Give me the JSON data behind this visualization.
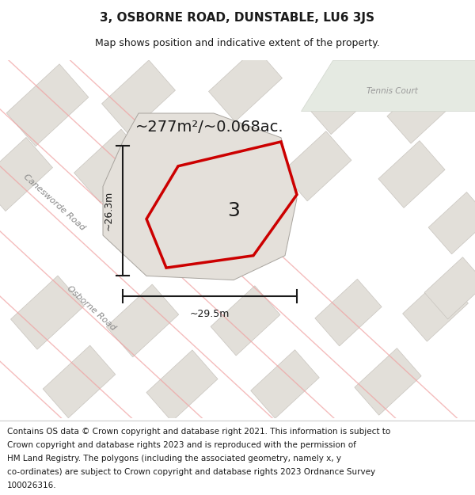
{
  "title": "3, OSBORNE ROAD, DUNSTABLE, LU6 3JS",
  "subtitle": "Map shows position and indicative extent of the property.",
  "footer_line1": "Contains OS data © Crown copyright and database right 2021. This information is subject to",
  "footer_line2": "Crown copyright and database rights 2023 and is reproduced with the permission of",
  "footer_line3": "HM Land Registry. The polygons (including the associated geometry, namely x, y",
  "footer_line4": "co-ordinates) are subject to Crown copyright and database rights 2023 Ordnance Survey",
  "footer_line5": "100026316.",
  "area_label": "~277m²/~0.068ac.",
  "width_label": "~29.5m",
  "height_label": "~26.3m",
  "plot_number": "3",
  "bg_color": "#eeebe5",
  "tennis_color": "#e5eae2",
  "tennis_border": "#d0d5cc",
  "road_line_color": "#f0a0a0",
  "plot_outline_color": "#cc0000",
  "dim_line_color": "#1a1a1a",
  "text_color": "#1a1a1a",
  "block_fill": "#e2dfd9",
  "block_edge": "#c8c4be",
  "plot_bg_fill": "#dedad4",
  "plot_bg_edge": "#aaa8a0",
  "road_label_color": "#888888",
  "title_fontsize": 11,
  "subtitle_fontsize": 9,
  "area_fontsize": 14,
  "dim_fontsize": 9,
  "plot_num_fontsize": 18,
  "footer_fontsize": 7.5,
  "tennis_label_fontsize": 7.5,
  "road_label_fontsize": 8
}
